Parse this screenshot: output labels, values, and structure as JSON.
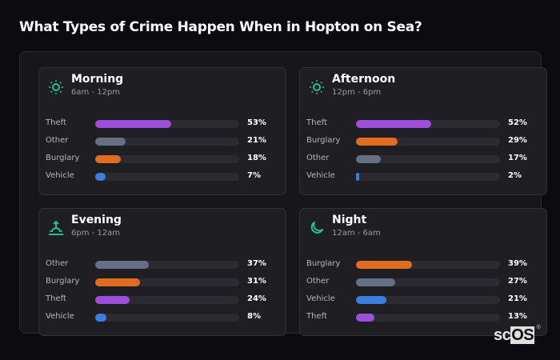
{
  "title": "What Types of Crime Happen When in Hopton on Sea?",
  "colors": {
    "Theft": "#9b4fdb",
    "Other": "#667085",
    "Burglary": "#e06c1f",
    "Vehicle": "#3b7de0",
    "icon": "#22c196"
  },
  "panels": [
    {
      "name": "Morning",
      "range": "6am - 12pm",
      "icon": "sun-icon",
      "rows": [
        {
          "label": "Theft",
          "value": 53,
          "pct": "53%"
        },
        {
          "label": "Other",
          "value": 21,
          "pct": "21%"
        },
        {
          "label": "Burglary",
          "value": 18,
          "pct": "18%"
        },
        {
          "label": "Vehicle",
          "value": 7,
          "pct": "7%"
        }
      ]
    },
    {
      "name": "Afternoon",
      "range": "12pm - 6pm",
      "icon": "sun-icon",
      "rows": [
        {
          "label": "Theft",
          "value": 52,
          "pct": "52%"
        },
        {
          "label": "Burglary",
          "value": 29,
          "pct": "29%"
        },
        {
          "label": "Other",
          "value": 17,
          "pct": "17%"
        },
        {
          "label": "Vehicle",
          "value": 2,
          "pct": "2%"
        }
      ]
    },
    {
      "name": "Evening",
      "range": "6pm - 12am",
      "icon": "sunset-icon",
      "rows": [
        {
          "label": "Other",
          "value": 37,
          "pct": "37%"
        },
        {
          "label": "Burglary",
          "value": 31,
          "pct": "31%"
        },
        {
          "label": "Theft",
          "value": 24,
          "pct": "24%"
        },
        {
          "label": "Vehicle",
          "value": 8,
          "pct": "8%"
        }
      ]
    },
    {
      "name": "Night",
      "range": "12am - 6am",
      "icon": "moon-icon",
      "rows": [
        {
          "label": "Burglary",
          "value": 39,
          "pct": "39%"
        },
        {
          "label": "Other",
          "value": 27,
          "pct": "27%"
        },
        {
          "label": "Vehicle",
          "value": 21,
          "pct": "21%"
        },
        {
          "label": "Theft",
          "value": 13,
          "pct": "13%"
        }
      ]
    }
  ],
  "logo": {
    "sc": "sc",
    "os": "OS",
    "reg": "®"
  },
  "chart_data": [
    {
      "type": "bar",
      "title": "Morning",
      "subtitle": "6am - 12pm",
      "orientation": "horizontal",
      "categories": [
        "Theft",
        "Other",
        "Burglary",
        "Vehicle"
      ],
      "values": [
        53,
        21,
        18,
        7
      ],
      "xlim": [
        0,
        100
      ]
    },
    {
      "type": "bar",
      "title": "Afternoon",
      "subtitle": "12pm - 6pm",
      "orientation": "horizontal",
      "categories": [
        "Theft",
        "Burglary",
        "Other",
        "Vehicle"
      ],
      "values": [
        52,
        29,
        17,
        2
      ],
      "xlim": [
        0,
        100
      ]
    },
    {
      "type": "bar",
      "title": "Evening",
      "subtitle": "6pm - 12am",
      "orientation": "horizontal",
      "categories": [
        "Other",
        "Burglary",
        "Theft",
        "Vehicle"
      ],
      "values": [
        37,
        31,
        24,
        8
      ],
      "xlim": [
        0,
        100
      ]
    },
    {
      "type": "bar",
      "title": "Night",
      "subtitle": "12am - 6am",
      "orientation": "horizontal",
      "categories": [
        "Burglary",
        "Other",
        "Vehicle",
        "Theft"
      ],
      "values": [
        39,
        27,
        21,
        13
      ],
      "xlim": [
        0,
        100
      ]
    }
  ]
}
